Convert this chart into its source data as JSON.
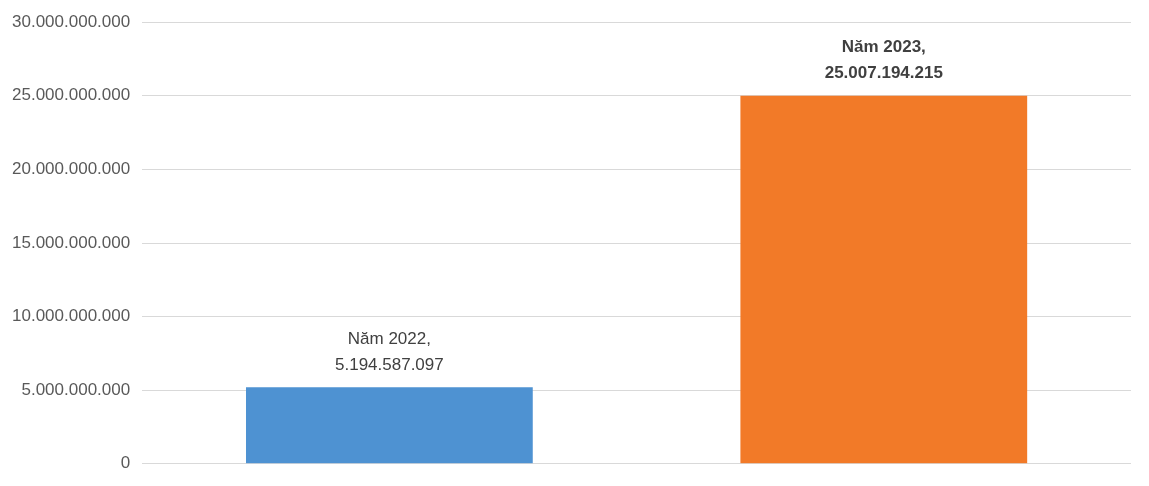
{
  "chart_data": {
    "type": "bar",
    "categories": [
      null
    ],
    "series": [
      {
        "color": "#4e92d2",
        "values": [
          5194587097
        ],
        "value_labels": [
          "Năm 2022,\n5.194.587.097"
        ]
      },
      {
        "color": "#f27a28",
        "values": [
          25007194215
        ],
        "value_labels": [
          "Năm 2023,\n25.007.194.215"
        ]
      }
    ],
    "ylim": [
      0,
      30000000000
    ],
    "yticks": [
      {
        "value": 0,
        "label": "0"
      },
      {
        "value": 5000000000,
        "label": "5.000.000.000"
      },
      {
        "value": 10000000000,
        "label": "10.000.000.000"
      },
      {
        "value": 15000000000,
        "label": "15.000.000.000"
      },
      {
        "value": 20000000000,
        "label": "20.000.000.000"
      },
      {
        "value": 25000000000,
        "label": "25.000.000.000"
      },
      {
        "value": 30000000000,
        "label": "30.000.000.000"
      }
    ],
    "grid": "y",
    "legend": false
  }
}
